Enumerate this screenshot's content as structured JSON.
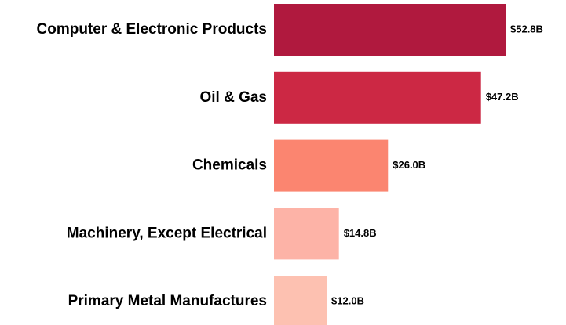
{
  "chart_data": {
    "type": "bar",
    "orientation": "horizontal",
    "categories": [
      "Computer & Electronic Products",
      "Oil & Gas",
      "Chemicals",
      "Machinery, Except Electrical",
      "Primary Metal Manufactures"
    ],
    "values": [
      52.8,
      47.2,
      26.0,
      14.8,
      12.0
    ],
    "value_labels": [
      "$52.8B",
      "$47.2B",
      "$26.0B",
      "$14.8B",
      "$12.0B"
    ],
    "colors": [
      "#b0193e",
      "#cc2844",
      "#fb8570",
      "#fdb3a7",
      "#fdc1b1"
    ]
  }
}
